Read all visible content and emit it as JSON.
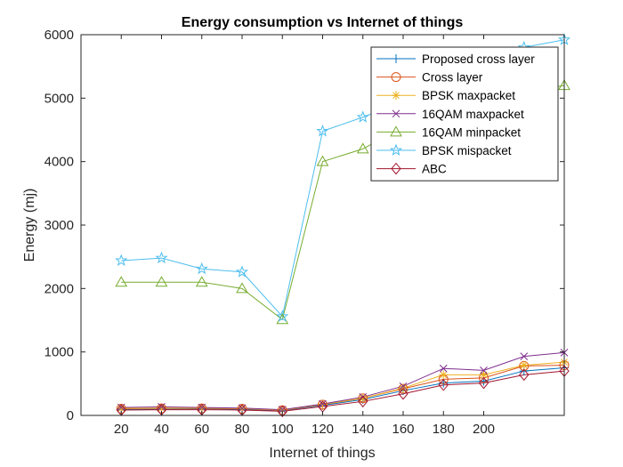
{
  "chart_data": {
    "type": "line",
    "title": "Energy consumption vs Internet of things",
    "xlabel": "Internet of things",
    "ylabel": "Energy (mj)",
    "xlim": [
      0,
      240
    ],
    "ylim": [
      0,
      6000
    ],
    "xticks": [
      20,
      40,
      60,
      80,
      100,
      120,
      140,
      160,
      180,
      200
    ],
    "yticks": [
      0,
      1000,
      2000,
      3000,
      4000,
      5000,
      6000
    ],
    "grid": false,
    "legend_position": "top-right",
    "x": [
      20,
      40,
      60,
      80,
      100,
      120,
      140,
      160,
      180,
      200,
      220,
      240
    ],
    "series": [
      {
        "name": "Proposed cross layer",
        "marker": "plus",
        "color": "#0072BD",
        "values": [
          95,
          100,
          105,
          95,
          75,
          160,
          250,
          390,
          510,
          540,
          700,
          750
        ]
      },
      {
        "name": "Cross layer",
        "marker": "circle",
        "color": "#D95319",
        "values": [
          105,
          110,
          110,
          105,
          80,
          170,
          270,
          420,
          570,
          590,
          780,
          790
        ]
      },
      {
        "name": "BPSK maxpacket",
        "marker": "asterisk",
        "color": "#EDB120",
        "values": [
          110,
          115,
          115,
          110,
          85,
          175,
          270,
          430,
          640,
          640,
          790,
          840
        ]
      },
      {
        "name": "16QAM maxpacket",
        "marker": "x",
        "color": "#7E2F8E",
        "values": [
          125,
          135,
          125,
          115,
          90,
          180,
          290,
          460,
          740,
          710,
          930,
          990
        ]
      },
      {
        "name": "16QAM minpacket",
        "marker": "triangle",
        "color": "#77AC30",
        "values": [
          2100,
          2100,
          2100,
          2000,
          1510,
          4000,
          4200,
          4550,
          4800,
          4950,
          5100,
          5200
        ]
      },
      {
        "name": "BPSK mispacket",
        "marker": "pentagram",
        "color": "#4DBEEE",
        "values": [
          2440,
          2480,
          2310,
          2260,
          1560,
          4480,
          4700,
          4950,
          5200,
          5500,
          5800,
          5920
        ]
      },
      {
        "name": "ABC",
        "marker": "diamond",
        "color": "#A2142F",
        "values": [
          85,
          90,
          90,
          85,
          65,
          140,
          220,
          340,
          480,
          510,
          640,
          700
        ]
      }
    ]
  }
}
